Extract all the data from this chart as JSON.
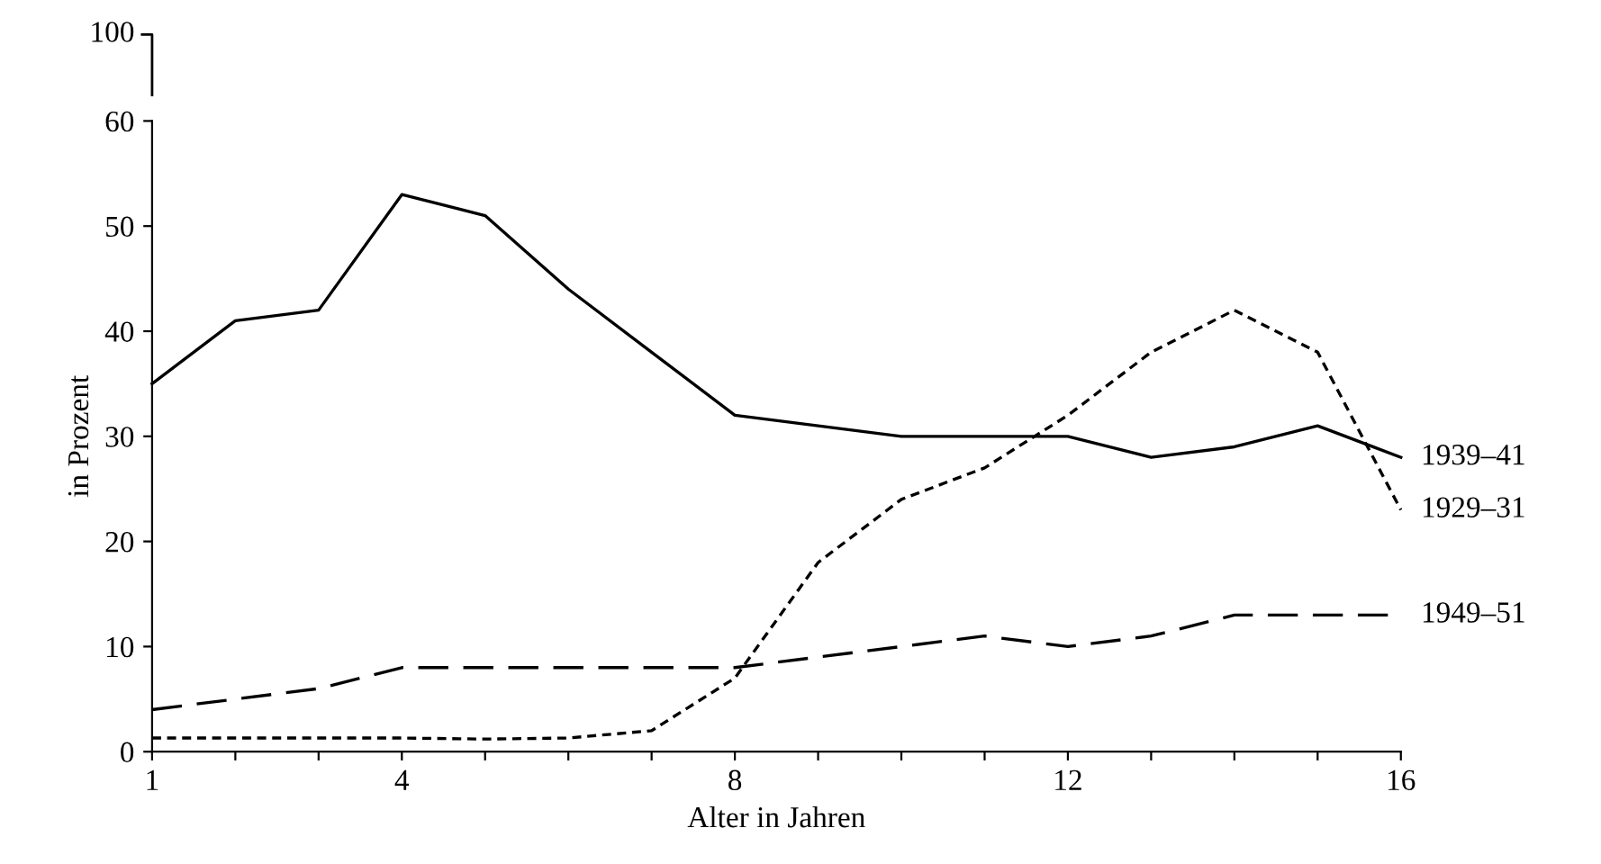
{
  "chart_data": [
    {
      "type": "other",
      "annotations": [
        "100"
      ]
    },
    {
      "type": "line",
      "xlabel": "Alter in Jahren",
      "ylabel": "in Prozent",
      "x": [
        1,
        2,
        3,
        4,
        5,
        6,
        7,
        8,
        9,
        10,
        11,
        12,
        13,
        14,
        15,
        16
      ],
      "xlim": [
        1,
        16
      ],
      "ylim": [
        0,
        60
      ],
      "xticks": [
        1,
        {
          "value": 2,
          "label": null
        },
        {
          "value": 3,
          "label": null
        },
        4,
        {
          "value": 5,
          "label": null
        },
        {
          "value": 6,
          "label": null
        },
        {
          "value": 7,
          "label": null
        },
        8,
        {
          "value": 9,
          "label": null
        },
        {
          "value": 10,
          "label": null
        },
        {
          "value": 11,
          "label": null
        },
        12,
        {
          "value": 13,
          "label": null
        },
        {
          "value": 14,
          "label": null
        },
        {
          "value": 15,
          "label": null
        },
        16
      ],
      "yticks": [
        0,
        10,
        20,
        30,
        40,
        50,
        60
      ],
      "grid": false,
      "legend": false,
      "marker": "none",
      "series": [
        {
          "name": "1939–41",
          "color": "#000000",
          "line_style": "solid",
          "values": [
            35,
            41,
            42,
            53,
            51,
            44,
            38,
            32,
            31,
            30,
            30,
            30,
            28,
            29,
            31,
            28
          ]
        },
        {
          "name": "1929–31",
          "color": "#000000",
          "line_style": "dotted",
          "values": [
            1.3,
            1.3,
            1.3,
            1.3,
            1.2,
            1.3,
            2,
            7,
            18,
            24,
            27,
            32,
            38,
            42,
            38,
            23
          ]
        },
        {
          "name": "1949–51",
          "color": "#000000",
          "line_style": "dashed",
          "values": [
            4,
            5,
            6,
            8,
            8,
            8,
            8,
            8,
            9,
            10,
            11,
            10,
            11,
            13,
            13,
            13
          ]
        }
      ]
    }
  ]
}
